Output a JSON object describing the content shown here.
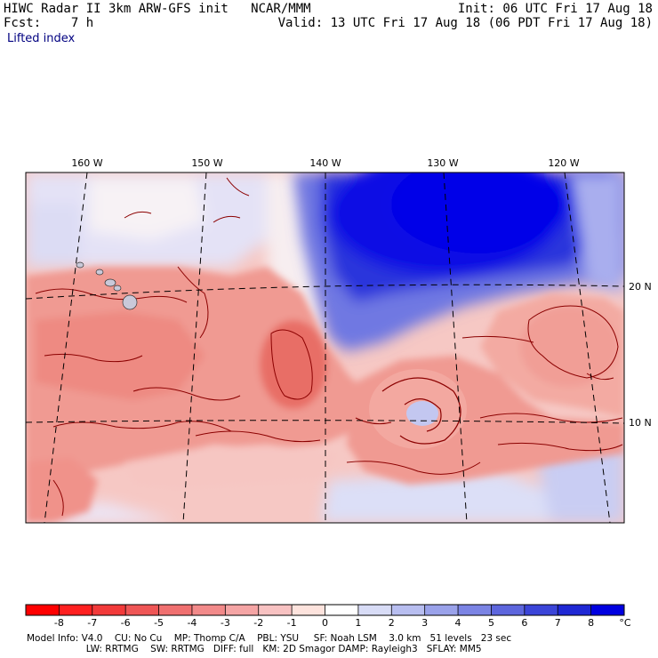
{
  "header": {
    "line1_left": "HIWC Radar II 3km ARW-GFS init   NCAR/MMM",
    "line1_right": "Init: 06 UTC Fri 17 Aug 18",
    "line2_left": "Fcst:    7 h",
    "line2_right": "Valid: 13 UTC Fri 17 Aug 18 (06 PDT Fri 17 Aug 18)",
    "field": "Lifted index"
  },
  "map": {
    "lon_labels": [
      "160 W",
      "150 W",
      "140 W",
      "130 W",
      "120 W"
    ],
    "lat_labels": [
      "20 N",
      "10 N"
    ]
  },
  "colorbar": {
    "ticks": [
      "-8",
      "-7",
      "-6",
      "-5",
      "-4",
      "-3",
      "-2",
      "-1",
      "0",
      "1",
      "2",
      "3",
      "4",
      "5",
      "6",
      "7",
      "8"
    ],
    "unit": "°C",
    "colors": [
      "#ff0000",
      "#ff2020",
      "#f23a3a",
      "#ef5656",
      "#f07070",
      "#f28a8a",
      "#f5a5a5",
      "#f8c2c2",
      "#fde3dd",
      "#ffffff",
      "#d8dcf6",
      "#b8bef0",
      "#9aa2ea",
      "#7b84e4",
      "#5d66dd",
      "#3b45d8",
      "#1f28d4",
      "#0000e0"
    ]
  },
  "footer": {
    "line1": "Model Info: V4.0    CU: No Cu    MP: Thomp C/A    PBL: YSU     SF: Noah LSM    3.0 km   51 levels   23 sec",
    "line2": "                    LW: RRTMG    SW: RRTMG   DIFF: full   KM: 2D Smagor DAMP: Rayleigh3   SFLAY: MM5"
  }
}
